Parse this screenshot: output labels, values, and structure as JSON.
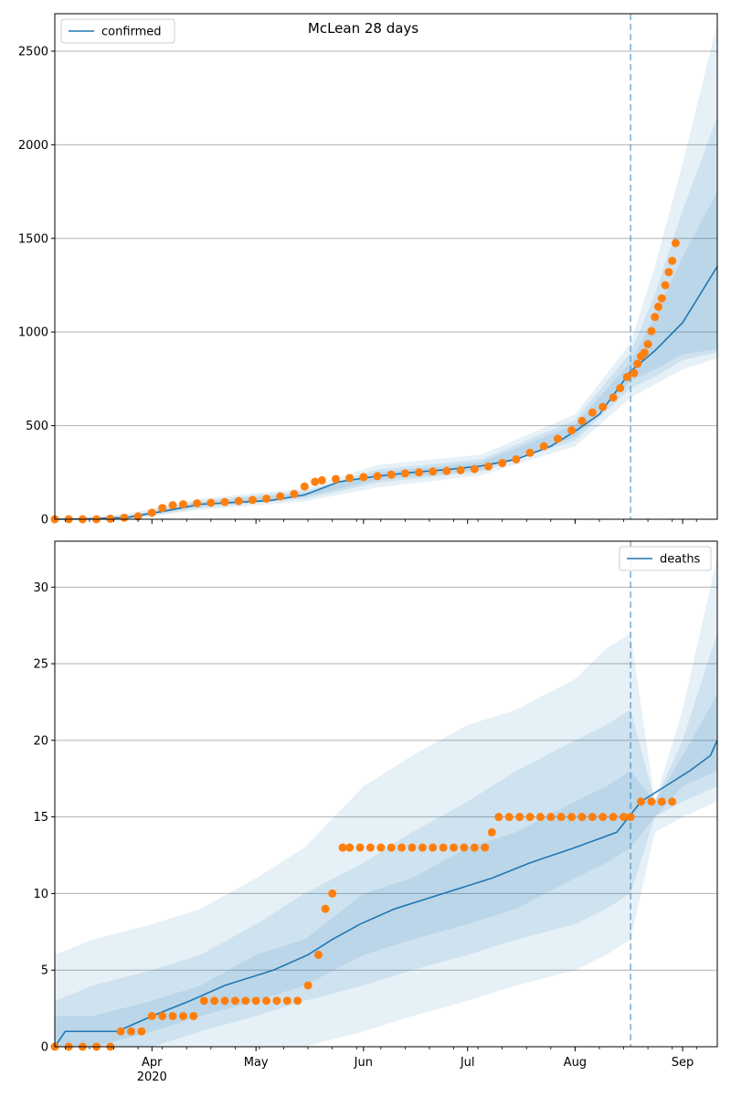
{
  "title": "McLean 28 days",
  "x_ticks": [
    {
      "date": "2020-04-01",
      "label": "Apr",
      "sub": "2020"
    },
    {
      "date": "2020-05-01",
      "label": "May",
      "sub": ""
    },
    {
      "date": "2020-06-01",
      "label": "Jun",
      "sub": ""
    },
    {
      "date": "2020-07-01",
      "label": "Jul",
      "sub": ""
    },
    {
      "date": "2020-08-01",
      "label": "Aug",
      "sub": ""
    },
    {
      "date": "2020-09-01",
      "label": "Sep",
      "sub": ""
    }
  ],
  "colors": {
    "model": "#1f77b4",
    "observed": "#ff7f0e",
    "band": "#1f77b4",
    "grid": "#b0b0b0"
  },
  "chart_data": [
    {
      "type": "line",
      "legend": "confirmed",
      "legend_position": "top-left",
      "show_title": true,
      "xlim": [
        "2020-03-04",
        "2020-09-11"
      ],
      "ylim": [
        0,
        2700
      ],
      "yticks": [
        0,
        500,
        1000,
        1500,
        2000,
        2500
      ],
      "ytick_labels": [
        "0",
        "500",
        "1000",
        "1500",
        "2000",
        "2500"
      ],
      "grid": "horizontal",
      "forecast_start": "2020-08-17",
      "model": {
        "name": "confirmed",
        "x": [
          "2020-03-04",
          "2020-03-15",
          "2020-03-25",
          "2020-04-05",
          "2020-04-15",
          "2020-04-25",
          "2020-05-05",
          "2020-05-15",
          "2020-05-25",
          "2020-06-05",
          "2020-06-15",
          "2020-06-25",
          "2020-07-05",
          "2020-07-15",
          "2020-07-25",
          "2020-08-01",
          "2020-08-08",
          "2020-08-17",
          "2020-08-24",
          "2020-09-01",
          "2020-09-11"
        ],
        "y": [
          0,
          2,
          10,
          45,
          80,
          90,
          100,
          130,
          200,
          230,
          250,
          265,
          285,
          320,
          390,
          470,
          560,
          790,
          900,
          1050,
          1350
        ]
      },
      "bands": [
        {
          "x": [
            "2020-03-04",
            "2020-03-25",
            "2020-04-15",
            "2020-05-15",
            "2020-06-05",
            "2020-07-05",
            "2020-08-01",
            "2020-08-17",
            "2020-08-24",
            "2020-09-01",
            "2020-09-11"
          ],
          "lower": [
            0,
            0,
            50,
            95,
            170,
            235,
            390,
            650,
            720,
            800,
            860
          ],
          "upper": [
            0,
            30,
            110,
            165,
            290,
            345,
            560,
            940,
            1350,
            1900,
            2650
          ]
        },
        {
          "x": [
            "2020-03-04",
            "2020-03-25",
            "2020-04-15",
            "2020-05-15",
            "2020-06-05",
            "2020-07-05",
            "2020-08-01",
            "2020-08-17",
            "2020-08-24",
            "2020-09-01",
            "2020-09-11"
          ],
          "lower": [
            0,
            2,
            60,
            110,
            195,
            255,
            420,
            700,
            760,
            850,
            890
          ],
          "upper": [
            0,
            20,
            100,
            150,
            265,
            320,
            530,
            890,
            1200,
            1650,
            2150
          ]
        },
        {
          "x": [
            "2020-03-04",
            "2020-03-25",
            "2020-04-15",
            "2020-05-15",
            "2020-06-05",
            "2020-07-05",
            "2020-08-01",
            "2020-08-17",
            "2020-08-24",
            "2020-09-01",
            "2020-09-11"
          ],
          "lower": [
            0,
            5,
            70,
            120,
            210,
            265,
            440,
            740,
            800,
            880,
            910
          ],
          "upper": [
            0,
            15,
            90,
            140,
            250,
            305,
            505,
            840,
            1080,
            1400,
            1750
          ]
        }
      ],
      "observed": {
        "x": [
          "2020-03-04",
          "2020-03-08",
          "2020-03-12",
          "2020-03-16",
          "2020-03-20",
          "2020-03-24",
          "2020-03-28",
          "2020-04-01",
          "2020-04-04",
          "2020-04-07",
          "2020-04-10",
          "2020-04-14",
          "2020-04-18",
          "2020-04-22",
          "2020-04-26",
          "2020-04-30",
          "2020-05-04",
          "2020-05-08",
          "2020-05-12",
          "2020-05-15",
          "2020-05-18",
          "2020-05-20",
          "2020-05-24",
          "2020-05-28",
          "2020-06-01",
          "2020-06-05",
          "2020-06-09",
          "2020-06-13",
          "2020-06-17",
          "2020-06-21",
          "2020-06-25",
          "2020-06-29",
          "2020-07-03",
          "2020-07-07",
          "2020-07-11",
          "2020-07-15",
          "2020-07-19",
          "2020-07-23",
          "2020-07-27",
          "2020-07-31",
          "2020-08-03",
          "2020-08-06",
          "2020-08-09",
          "2020-08-12",
          "2020-08-14",
          "2020-08-16",
          "2020-08-18",
          "2020-08-19",
          "2020-08-20",
          "2020-08-21",
          "2020-08-22",
          "2020-08-23",
          "2020-08-24",
          "2020-08-25",
          "2020-08-26",
          "2020-08-27",
          "2020-08-28",
          "2020-08-29",
          "2020-08-30"
        ],
        "y": [
          0,
          0,
          0,
          0,
          3,
          8,
          15,
          35,
          60,
          75,
          80,
          85,
          88,
          92,
          97,
          103,
          110,
          122,
          135,
          175,
          200,
          208,
          215,
          220,
          225,
          230,
          238,
          245,
          250,
          255,
          258,
          262,
          268,
          282,
          300,
          320,
          355,
          390,
          430,
          475,
          525,
          570,
          600,
          650,
          700,
          760,
          780,
          830,
          870,
          890,
          935,
          1005,
          1080,
          1135,
          1180,
          1250,
          1320,
          1380,
          1475
        ]
      }
    },
    {
      "type": "line",
      "legend": "deaths",
      "legend_position": "top-right",
      "show_title": false,
      "xlim": [
        "2020-03-04",
        "2020-09-11"
      ],
      "ylim": [
        0,
        33
      ],
      "yticks": [
        0,
        5,
        10,
        15,
        20,
        25,
        30
      ],
      "ytick_labels": [
        "0",
        "5",
        "10",
        "15",
        "20",
        "25",
        "30"
      ],
      "grid": "horizontal",
      "forecast_start": "2020-08-17",
      "model": {
        "name": "deaths",
        "x": [
          "2020-03-04",
          "2020-03-07",
          "2020-03-22",
          "2020-04-01",
          "2020-04-12",
          "2020-04-22",
          "2020-05-06",
          "2020-05-16",
          "2020-05-23",
          "2020-05-31",
          "2020-06-10",
          "2020-06-24",
          "2020-07-08",
          "2020-07-19",
          "2020-08-01",
          "2020-08-13",
          "2020-08-20",
          "2020-08-27",
          "2020-09-03",
          "2020-09-09",
          "2020-09-11"
        ],
        "y": [
          0,
          1,
          1,
          2,
          3,
          4,
          5,
          6,
          7,
          8,
          9,
          10,
          11,
          12,
          13,
          14,
          16,
          17,
          18,
          19,
          20
        ]
      },
      "bands": [
        {
          "x": [
            "2020-03-04",
            "2020-03-15",
            "2020-04-01",
            "2020-04-15",
            "2020-05-01",
            "2020-05-15",
            "2020-06-01",
            "2020-06-15",
            "2020-07-01",
            "2020-07-15",
            "2020-08-01",
            "2020-08-10",
            "2020-08-17",
            "2020-08-24",
            "2020-09-01",
            "2020-09-11"
          ],
          "lower": [
            0,
            0,
            0,
            0,
            0,
            0,
            1,
            2,
            3,
            4,
            5,
            6,
            7,
            14,
            15,
            16
          ],
          "upper": [
            6,
            7,
            8,
            9,
            11,
            13,
            17,
            19,
            21,
            22,
            24,
            26,
            27,
            16,
            22,
            32
          ]
        },
        {
          "x": [
            "2020-03-04",
            "2020-03-15",
            "2020-04-01",
            "2020-04-15",
            "2020-05-01",
            "2020-05-15",
            "2020-06-01",
            "2020-06-15",
            "2020-07-01",
            "2020-07-15",
            "2020-08-01",
            "2020-08-10",
            "2020-08-17",
            "2020-08-24",
            "2020-09-01",
            "2020-09-11"
          ],
          "lower": [
            0,
            0,
            0,
            1,
            2,
            3,
            4,
            5,
            6,
            7,
            8,
            9,
            10,
            15,
            16,
            17
          ],
          "upper": [
            3,
            4,
            5,
            6,
            8,
            10,
            12,
            14,
            16,
            18,
            20,
            21,
            22,
            16,
            20,
            27
          ]
        },
        {
          "x": [
            "2020-03-04",
            "2020-03-15",
            "2020-04-01",
            "2020-04-15",
            "2020-05-01",
            "2020-05-15",
            "2020-06-01",
            "2020-06-15",
            "2020-07-01",
            "2020-07-15",
            "2020-08-01",
            "2020-08-10",
            "2020-08-17",
            "2020-08-24",
            "2020-09-01",
            "2020-09-11"
          ],
          "lower": [
            0,
            0,
            1,
            2,
            3,
            4,
            6,
            7,
            8,
            9,
            11,
            12,
            13,
            15,
            17,
            18
          ],
          "upper": [
            2,
            2,
            3,
            4,
            6,
            7,
            10,
            11,
            13,
            14,
            16,
            17,
            18,
            16,
            19,
            23
          ]
        }
      ],
      "observed": {
        "x": [
          "2020-03-04",
          "2020-03-08",
          "2020-03-12",
          "2020-03-16",
          "2020-03-20",
          "2020-03-23",
          "2020-03-26",
          "2020-03-29",
          "2020-04-01",
          "2020-04-04",
          "2020-04-07",
          "2020-04-10",
          "2020-04-13",
          "2020-04-16",
          "2020-04-19",
          "2020-04-22",
          "2020-04-25",
          "2020-04-28",
          "2020-05-01",
          "2020-05-04",
          "2020-05-07",
          "2020-05-10",
          "2020-05-13",
          "2020-05-16",
          "2020-05-19",
          "2020-05-21",
          "2020-05-23",
          "2020-05-26",
          "2020-05-28",
          "2020-05-31",
          "2020-06-03",
          "2020-06-06",
          "2020-06-09",
          "2020-06-12",
          "2020-06-15",
          "2020-06-18",
          "2020-06-21",
          "2020-06-24",
          "2020-06-27",
          "2020-06-30",
          "2020-07-03",
          "2020-07-06",
          "2020-07-08",
          "2020-07-10",
          "2020-07-13",
          "2020-07-16",
          "2020-07-19",
          "2020-07-22",
          "2020-07-25",
          "2020-07-28",
          "2020-07-31",
          "2020-08-03",
          "2020-08-06",
          "2020-08-09",
          "2020-08-12",
          "2020-08-15",
          "2020-08-17",
          "2020-08-20",
          "2020-08-23",
          "2020-08-26",
          "2020-08-29"
        ],
        "y": [
          0,
          0,
          0,
          0,
          0,
          1,
          1,
          1,
          2,
          2,
          2,
          2,
          2,
          3,
          3,
          3,
          3,
          3,
          3,
          3,
          3,
          3,
          3,
          4,
          6,
          9,
          10,
          13,
          13,
          13,
          13,
          13,
          13,
          13,
          13,
          13,
          13,
          13,
          13,
          13,
          13,
          13,
          14,
          15,
          15,
          15,
          15,
          15,
          15,
          15,
          15,
          15,
          15,
          15,
          15,
          15,
          15,
          16,
          16,
          16,
          16
        ]
      }
    }
  ]
}
